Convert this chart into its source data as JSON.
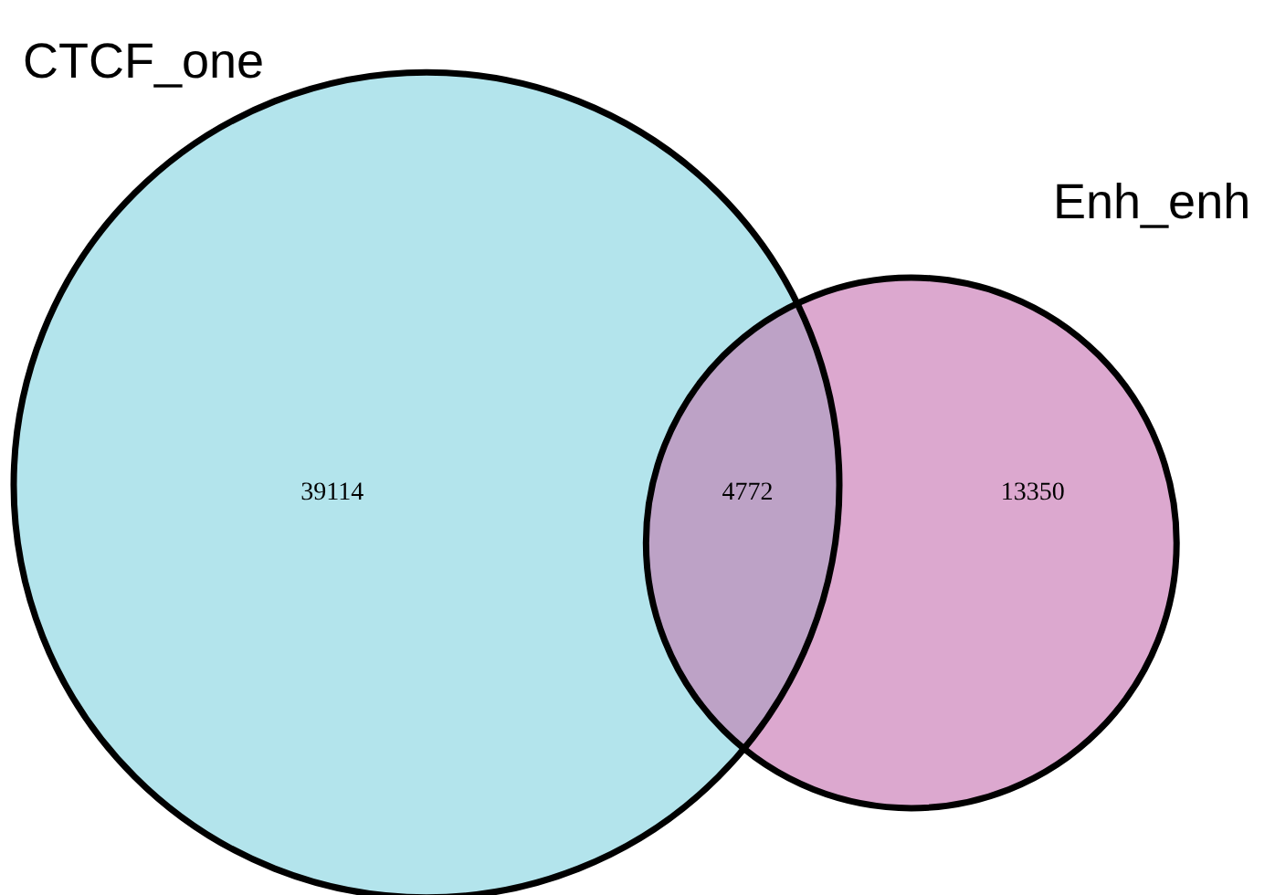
{
  "chart_data": {
    "type": "other",
    "categories": [
      "CTCF_one",
      null,
      "Enh_enh"
    ],
    "values": [
      39114,
      4772,
      13350
    ],
    "colors": [
      "#b3e4ec",
      "#bda2c6",
      "#dca8cf"
    ],
    "data_labels": true
  }
}
